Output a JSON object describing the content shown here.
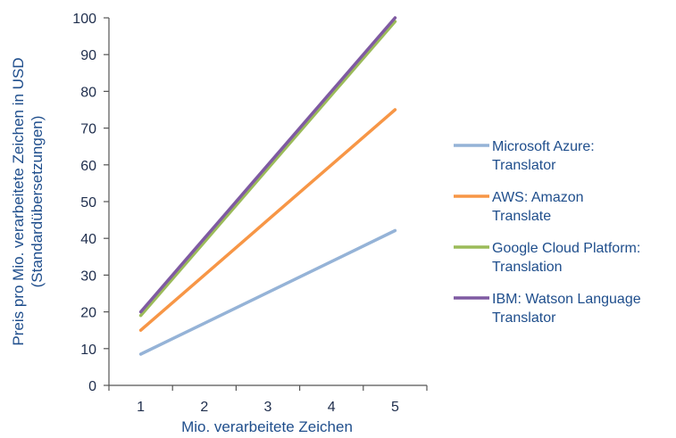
{
  "chart_data": {
    "type": "line",
    "xlabel": "Mio. verarbeitete Zeichen",
    "ylabel_lines": [
      "Preis pro Mio. verarbeitete Zeichen in USD",
      "(Standardübersetzungen)"
    ],
    "x": [
      1,
      2,
      3,
      4,
      5
    ],
    "xticks": [
      "1",
      "2",
      "3",
      "4",
      "5"
    ],
    "xlim": [
      0.5,
      5.5
    ],
    "ylim": [
      0,
      100
    ],
    "yticks": [
      "0",
      "10",
      "20",
      "30",
      "40",
      "50",
      "60",
      "70",
      "80",
      "90",
      "100"
    ],
    "grid": false,
    "legend_position": "right",
    "series": [
      {
        "name_lines": [
          "Microsoft Azure:",
          "Translator"
        ],
        "color": "#95b3d7",
        "values": [
          8.5,
          16.9,
          25.3,
          33.7,
          42.1
        ]
      },
      {
        "name_lines": [
          "AWS: Amazon",
          "Translate"
        ],
        "color": "#f79646",
        "values": [
          15,
          30,
          45,
          60,
          75
        ]
      },
      {
        "name_lines": [
          "Google Cloud Platform:",
          "Translation"
        ],
        "color": "#9bbb59",
        "values": [
          19,
          39,
          59,
          79,
          99
        ]
      },
      {
        "name_lines": [
          "IBM: Watson Language",
          "Translator"
        ],
        "color": "#7f5aa2",
        "values": [
          20,
          40,
          60,
          80,
          100
        ]
      }
    ]
  }
}
